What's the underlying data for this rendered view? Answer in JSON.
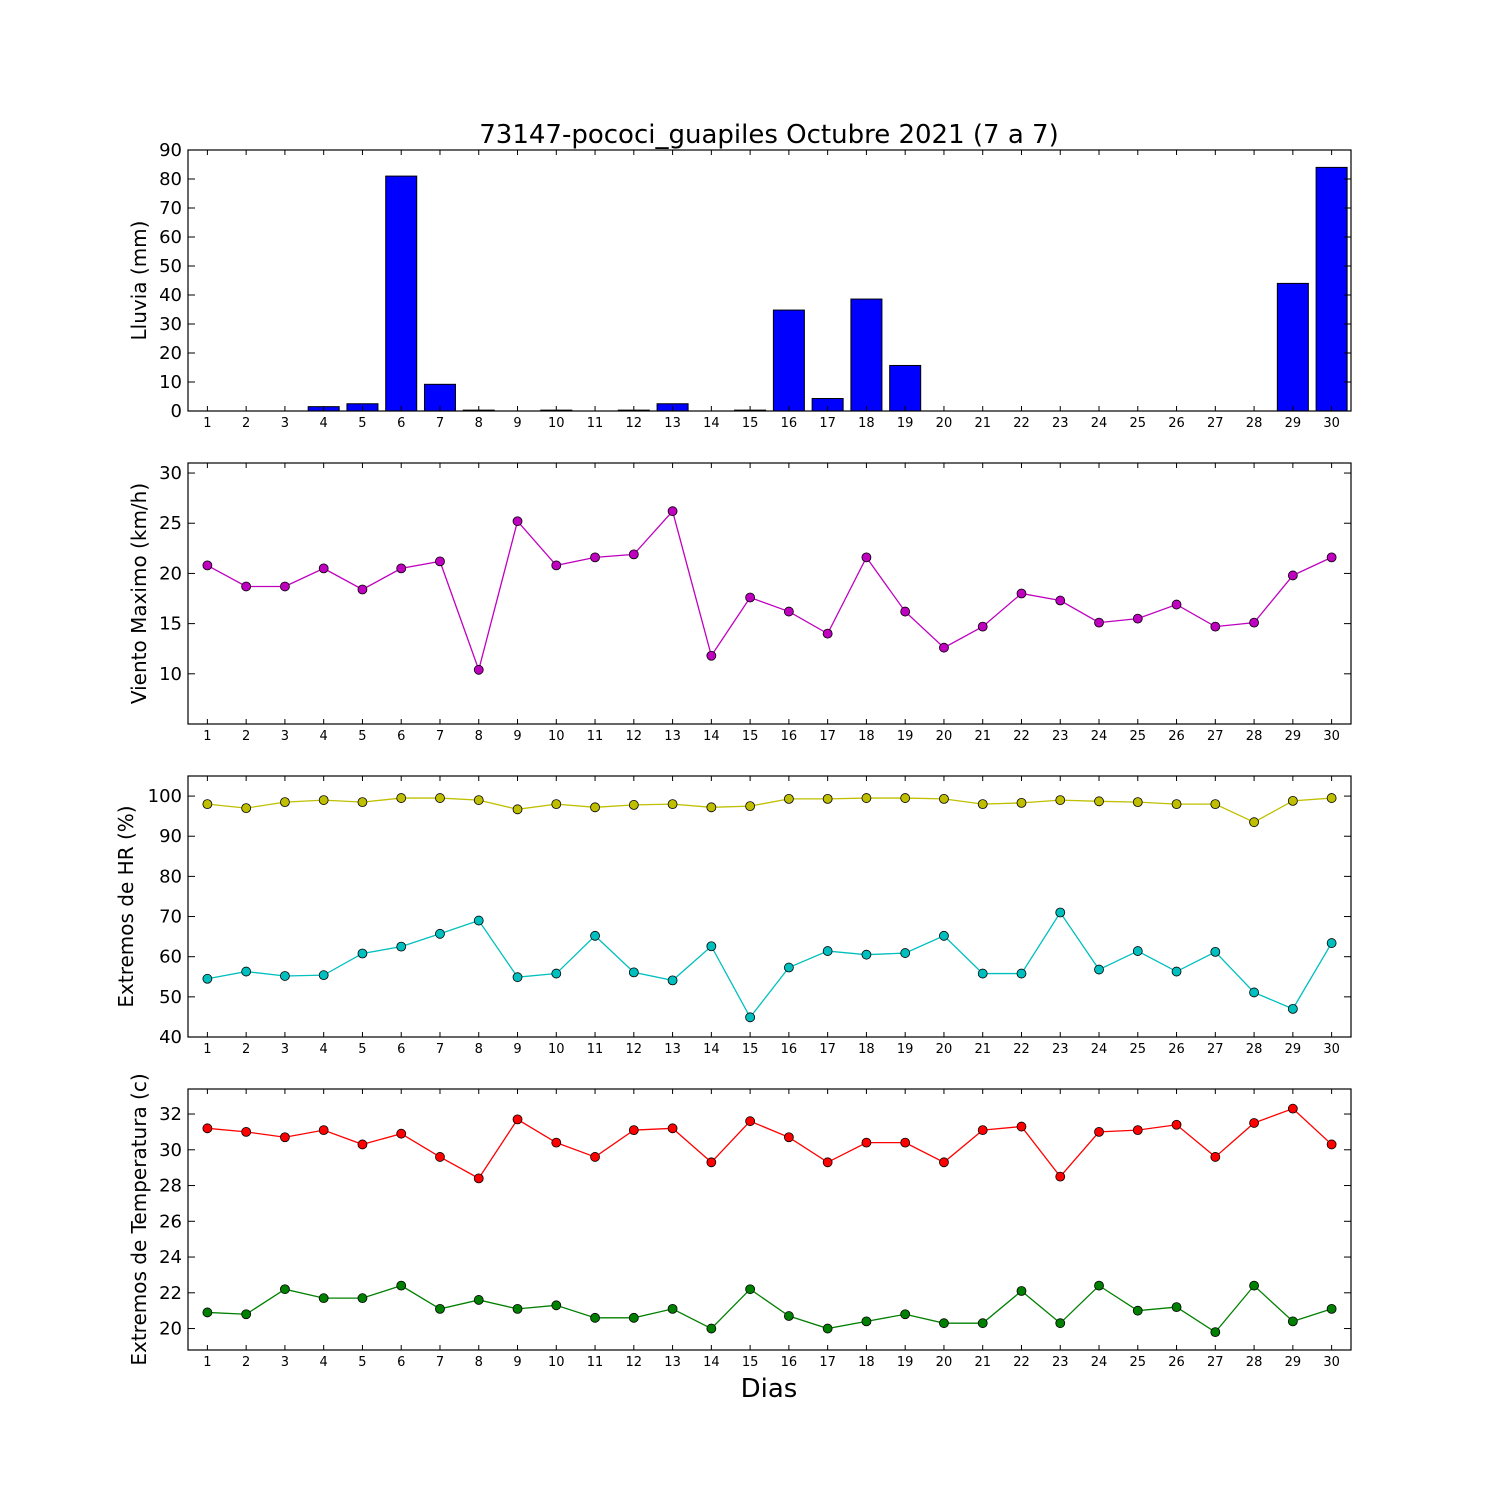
{
  "title": "73147-pococi_guapiles Octubre 2021  (7 a 7)",
  "chart_data": [
    {
      "type": "bar",
      "ylabel": "Lluvia (mm)",
      "xlabel": "",
      "ylim": [
        0,
        90
      ],
      "yticks": [
        0,
        10,
        20,
        30,
        40,
        50,
        60,
        70,
        80,
        90
      ],
      "categories": [
        "1",
        "2",
        "3",
        "4",
        "5",
        "6",
        "7",
        "8",
        "9",
        "10",
        "11",
        "12",
        "13",
        "14",
        "15",
        "16",
        "17",
        "18",
        "19",
        "20",
        "21",
        "22",
        "23",
        "24",
        "25",
        "26",
        "27",
        "28",
        "29",
        "30"
      ],
      "values": [
        0,
        0,
        0,
        1.5,
        2.5,
        81,
        9.2,
        0.3,
        0,
        0.3,
        0,
        0.3,
        2.5,
        0,
        0.3,
        34.8,
        4.3,
        38.6,
        15.7,
        0,
        0,
        0,
        0,
        0,
        0,
        0,
        0,
        0,
        44,
        84
      ],
      "color": "#0000ff"
    },
    {
      "type": "line",
      "ylabel": "Viento Maximo (km/h)",
      "xlabel": "",
      "ylim": [
        5,
        31
      ],
      "yticks": [
        10,
        15,
        20,
        25,
        30
      ],
      "x": [
        1,
        2,
        3,
        4,
        5,
        6,
        7,
        8,
        9,
        10,
        11,
        12,
        13,
        14,
        15,
        16,
        17,
        18,
        19,
        20,
        21,
        22,
        23,
        24,
        25,
        26,
        27,
        28,
        29,
        30
      ],
      "series": [
        {
          "values": [
            20.8,
            18.7,
            18.7,
            20.5,
            18.4,
            20.5,
            21.2,
            10.4,
            25.2,
            20.8,
            21.6,
            21.9,
            26.2,
            11.8,
            17.6,
            16.2,
            14.0,
            21.6,
            16.2,
            12.6,
            14.7,
            18.0,
            17.3,
            15.1,
            15.5,
            16.9,
            14.7,
            15.1,
            19.8,
            21.6
          ],
          "color": "#bf00bf"
        }
      ]
    },
    {
      "type": "line",
      "ylabel": "Extremos de HR (%)",
      "xlabel": "",
      "ylim": [
        40,
        105
      ],
      "yticks": [
        40,
        50,
        60,
        70,
        80,
        90,
        100
      ],
      "x": [
        1,
        2,
        3,
        4,
        5,
        6,
        7,
        8,
        9,
        10,
        11,
        12,
        13,
        14,
        15,
        16,
        17,
        18,
        19,
        20,
        21,
        22,
        23,
        24,
        25,
        26,
        27,
        28,
        29,
        30
      ],
      "series": [
        {
          "values": [
            98,
            97,
            98.5,
            99,
            98.5,
            99.5,
            99.5,
            99,
            96.7,
            98,
            97.2,
            97.8,
            98,
            97.2,
            97.5,
            99.3,
            99.3,
            99.5,
            99.5,
            99.3,
            98,
            98.3,
            99,
            98.7,
            98.5,
            98,
            98,
            93.5,
            98.8,
            99.5
          ],
          "color": "#bfbf00"
        },
        {
          "values": [
            54.5,
            56.3,
            55.2,
            55.4,
            60.8,
            62.5,
            65.7,
            69.0,
            54.9,
            55.8,
            65.2,
            56.1,
            54.1,
            62.6,
            44.9,
            57.3,
            61.4,
            60.5,
            60.9,
            65.2,
            55.8,
            55.8,
            71.0,
            56.8,
            61.4,
            56.3,
            61.2,
            51.1,
            47.0,
            63.4
          ],
          "color": "#00bfbf"
        }
      ]
    },
    {
      "type": "line",
      "ylabel": "Extremos de Temperatura (c)",
      "xlabel": "Dias",
      "ylim": [
        18.8,
        33.4
      ],
      "yticks": [
        20,
        22,
        24,
        26,
        28,
        30,
        32
      ],
      "x": [
        1,
        2,
        3,
        4,
        5,
        6,
        7,
        8,
        9,
        10,
        11,
        12,
        13,
        14,
        15,
        16,
        17,
        18,
        19,
        20,
        21,
        22,
        23,
        24,
        25,
        26,
        27,
        28,
        29,
        30
      ],
      "series": [
        {
          "values": [
            31.2,
            31.0,
            30.7,
            31.1,
            30.3,
            30.9,
            29.6,
            28.4,
            31.7,
            30.4,
            29.6,
            31.1,
            31.2,
            29.3,
            31.6,
            30.7,
            29.3,
            30.4,
            30.4,
            29.3,
            31.1,
            31.3,
            28.5,
            31.0,
            31.1,
            31.4,
            29.6,
            31.5,
            32.3,
            30.3
          ],
          "color": "#ff0000"
        },
        {
          "values": [
            20.9,
            20.8,
            22.2,
            21.7,
            21.7,
            22.4,
            21.1,
            21.6,
            21.1,
            21.3,
            20.6,
            20.6,
            21.1,
            20.0,
            22.2,
            20.7,
            20.0,
            20.4,
            20.8,
            20.3,
            20.3,
            22.1,
            20.3,
            22.4,
            21.0,
            21.2,
            19.8,
            22.4,
            20.4,
            21.1
          ],
          "color": "#008000"
        }
      ]
    }
  ]
}
